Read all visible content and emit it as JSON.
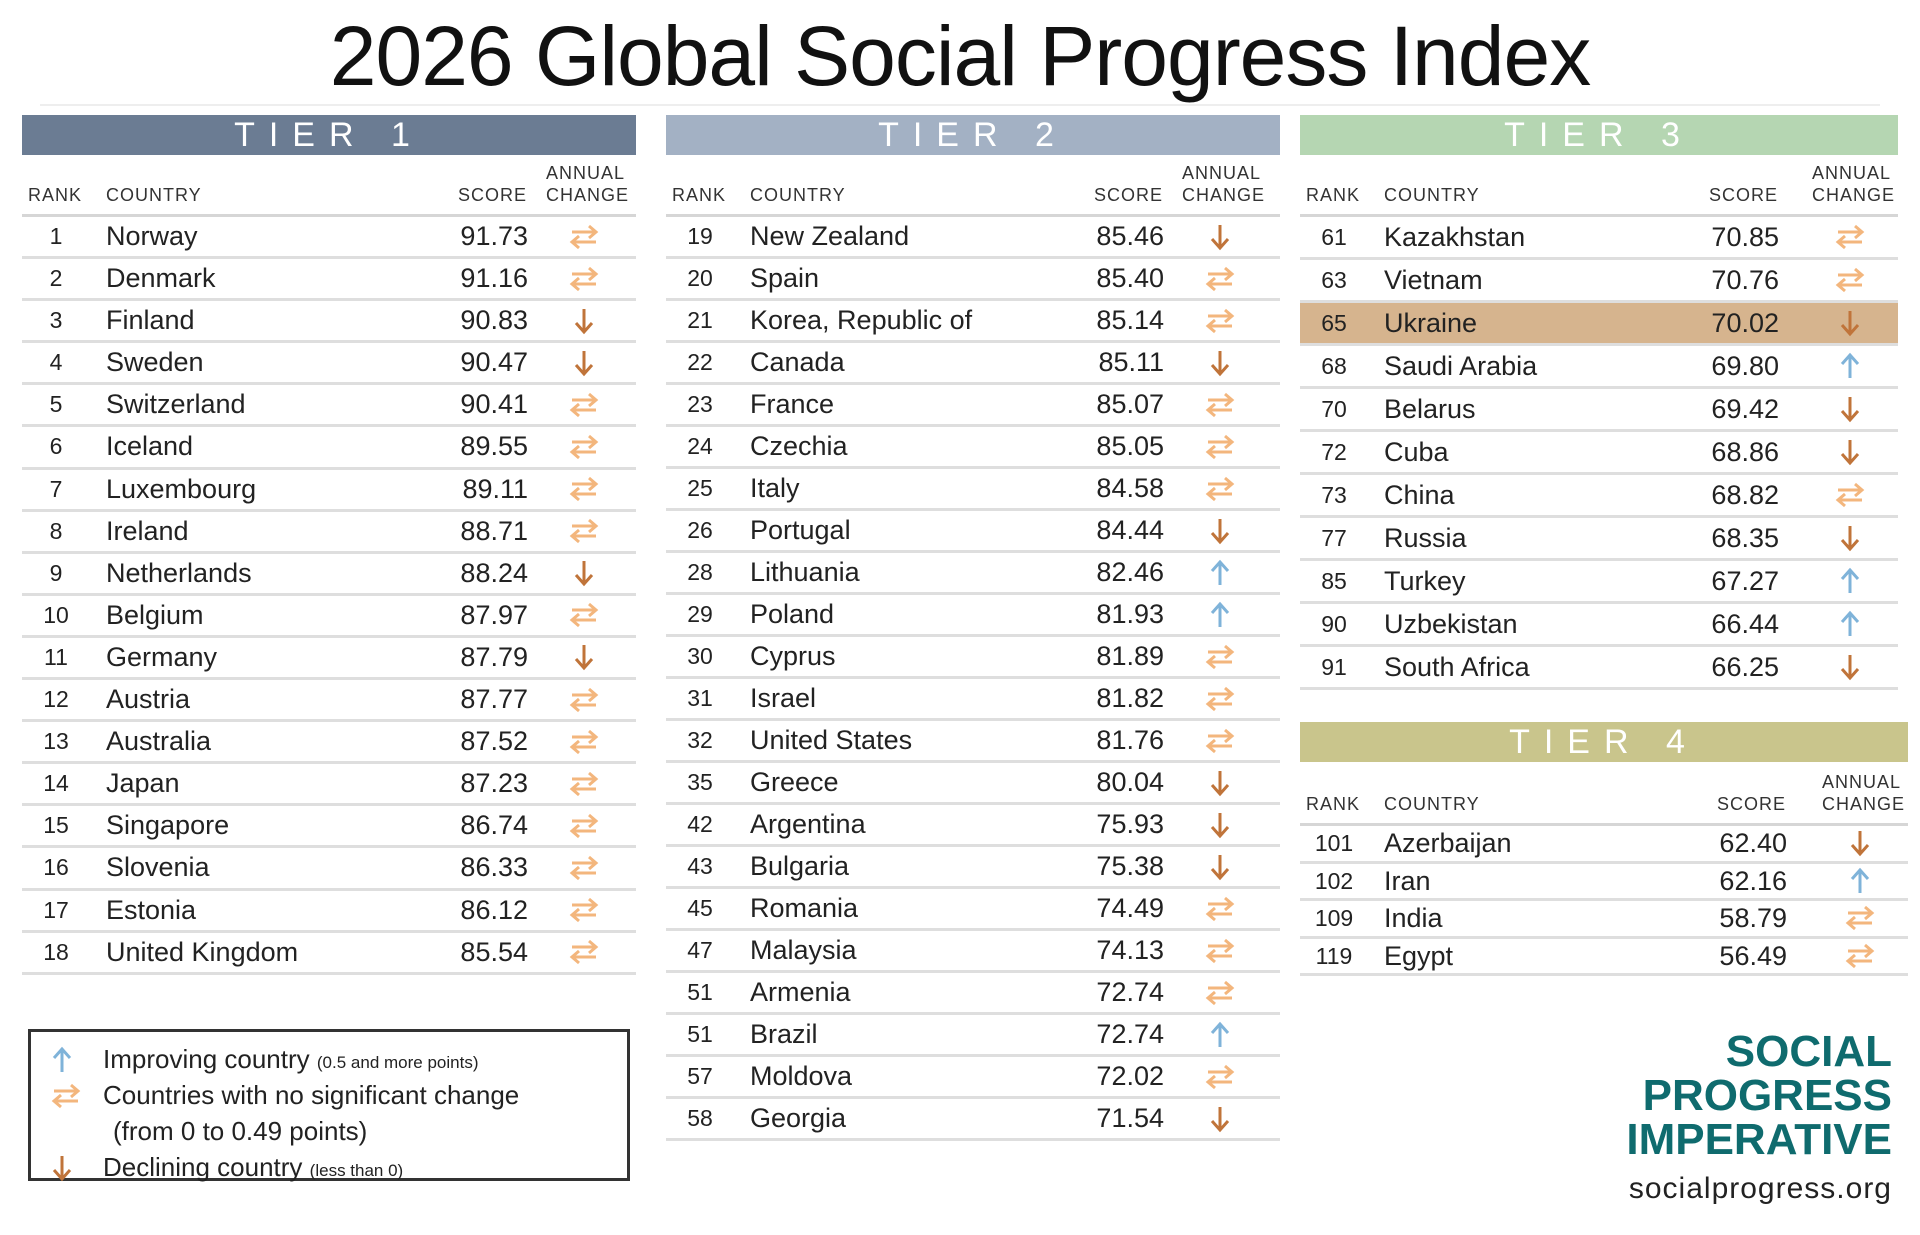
{
  "title": "2026 Global Social Progress Index",
  "colors": {
    "tier1": "#6b7c93",
    "tier2": "#a3b1c4",
    "tier3": "#b5d6b2",
    "tier4": "#c9c58c",
    "up": "#7fb3d9",
    "same": "#f3b67d",
    "down": "#c0743a",
    "highlight": "#d6b48e"
  },
  "headers": {
    "rank": "RANK",
    "country": "COUNTRY",
    "score": "SCORE",
    "annual": "ANNUAL",
    "change": "CHANGE"
  },
  "tiers": [
    {
      "label": "TIER 1",
      "rows": [
        {
          "rank": "1",
          "country": "Norway",
          "score": "91.73",
          "change": "same"
        },
        {
          "rank": "2",
          "country": "Denmark",
          "score": "91.16",
          "change": "same"
        },
        {
          "rank": "3",
          "country": "Finland",
          "score": "90.83",
          "change": "down"
        },
        {
          "rank": "4",
          "country": "Sweden",
          "score": "90.47",
          "change": "down"
        },
        {
          "rank": "5",
          "country": "Switzerland",
          "score": "90.41",
          "change": "same"
        },
        {
          "rank": "6",
          "country": "Iceland",
          "score": "89.55",
          "change": "same"
        },
        {
          "rank": "7",
          "country": "Luxembourg",
          "score": "89.11",
          "change": "same"
        },
        {
          "rank": "8",
          "country": "Ireland",
          "score": "88.71",
          "change": "same"
        },
        {
          "rank": "9",
          "country": "Netherlands",
          "score": "88.24",
          "change": "down"
        },
        {
          "rank": "10",
          "country": "Belgium",
          "score": "87.97",
          "change": "same"
        },
        {
          "rank": "11",
          "country": "Germany",
          "score": "87.79",
          "change": "down"
        },
        {
          "rank": "12",
          "country": "Austria",
          "score": "87.77",
          "change": "same"
        },
        {
          "rank": "13",
          "country": "Australia",
          "score": "87.52",
          "change": "same"
        },
        {
          "rank": "14",
          "country": "Japan",
          "score": "87.23",
          "change": "same"
        },
        {
          "rank": "15",
          "country": "Singapore",
          "score": "86.74",
          "change": "same"
        },
        {
          "rank": "16",
          "country": "Slovenia",
          "score": "86.33",
          "change": "same"
        },
        {
          "rank": "17",
          "country": "Estonia",
          "score": "86.12",
          "change": "same"
        },
        {
          "rank": "18",
          "country": "United Kingdom",
          "score": "85.54",
          "change": "same"
        }
      ]
    },
    {
      "label": "TIER 2",
      "rows": [
        {
          "rank": "19",
          "country": "New Zealand",
          "score": "85.46",
          "change": "down"
        },
        {
          "rank": "20",
          "country": "Spain",
          "score": "85.40",
          "change": "same"
        },
        {
          "rank": "21",
          "country": "Korea, Republic of",
          "score": "85.14",
          "change": "same"
        },
        {
          "rank": "22",
          "country": "Canada",
          "score": "85.11",
          "change": "down"
        },
        {
          "rank": "23",
          "country": "France",
          "score": "85.07",
          "change": "same"
        },
        {
          "rank": "24",
          "country": "Czechia",
          "score": "85.05",
          "change": "same"
        },
        {
          "rank": "25",
          "country": "Italy",
          "score": "84.58",
          "change": "same"
        },
        {
          "rank": "26",
          "country": "Portugal",
          "score": "84.44",
          "change": "down"
        },
        {
          "rank": "28",
          "country": "Lithuania",
          "score": "82.46",
          "change": "up"
        },
        {
          "rank": "29",
          "country": "Poland",
          "score": "81.93",
          "change": "up"
        },
        {
          "rank": "30",
          "country": "Cyprus",
          "score": "81.89",
          "change": "same"
        },
        {
          "rank": "31",
          "country": "Israel",
          "score": "81.82",
          "change": "same"
        },
        {
          "rank": "32",
          "country": "United States",
          "score": "81.76",
          "change": "same"
        },
        {
          "rank": "35",
          "country": "Greece",
          "score": "80.04",
          "change": "down"
        },
        {
          "rank": "42",
          "country": "Argentina",
          "score": "75.93",
          "change": "down"
        },
        {
          "rank": "43",
          "country": "Bulgaria",
          "score": "75.38",
          "change": "down"
        },
        {
          "rank": "45",
          "country": "Romania",
          "score": "74.49",
          "change": "same"
        },
        {
          "rank": "47",
          "country": "Malaysia",
          "score": "74.13",
          "change": "same"
        },
        {
          "rank": "51",
          "country": "Armenia",
          "score": "72.74",
          "change": "same"
        },
        {
          "rank": "51",
          "country": "Brazil",
          "score": "72.74",
          "change": "up"
        },
        {
          "rank": "57",
          "country": "Moldova",
          "score": "72.02",
          "change": "same"
        },
        {
          "rank": "58",
          "country": "Georgia",
          "score": "71.54",
          "change": "down"
        }
      ]
    },
    {
      "label": "TIER 3",
      "rows": [
        {
          "rank": "61",
          "country": "Kazakhstan",
          "score": "70.85",
          "change": "same"
        },
        {
          "rank": "63",
          "country": "Vietnam",
          "score": "70.76",
          "change": "same"
        },
        {
          "rank": "65",
          "country": "Ukraine",
          "score": "70.02",
          "change": "down",
          "highlight": true
        },
        {
          "rank": "68",
          "country": "Saudi Arabia",
          "score": "69.80",
          "change": "up"
        },
        {
          "rank": "70",
          "country": "Belarus",
          "score": "69.42",
          "change": "down"
        },
        {
          "rank": "72",
          "country": "Cuba",
          "score": "68.86",
          "change": "down"
        },
        {
          "rank": "73",
          "country": "China",
          "score": "68.82",
          "change": "same"
        },
        {
          "rank": "77",
          "country": "Russia",
          "score": "68.35",
          "change": "down"
        },
        {
          "rank": "85",
          "country": "Turkey",
          "score": "67.27",
          "change": "up"
        },
        {
          "rank": "90",
          "country": "Uzbekistan",
          "score": "66.44",
          "change": "up"
        },
        {
          "rank": "91",
          "country": "South Africa",
          "score": "66.25",
          "change": "down"
        }
      ]
    },
    {
      "label": "TIER 4",
      "rows": [
        {
          "rank": "101",
          "country": "Azerbaijan",
          "score": "62.40",
          "change": "down"
        },
        {
          "rank": "102",
          "country": "Iran",
          "score": "62.16",
          "change": "up"
        },
        {
          "rank": "109",
          "country": "India",
          "score": "58.79",
          "change": "same"
        },
        {
          "rank": "119",
          "country": "Egypt",
          "score": "56.49",
          "change": "same"
        }
      ]
    }
  ],
  "legend": {
    "improving": "Improving country",
    "improving_note": "(0.5 and more points)",
    "no_change": "Countries with no significant change",
    "no_change_note": "(from 0 to 0.49 points)",
    "declining": "Declining country",
    "declining_note": "(less than 0)"
  },
  "logo": {
    "line1": "SOCIAL",
    "line2": "PROGRESS",
    "line3": "IMPERATIVE",
    "url": "socialprogress.org"
  }
}
